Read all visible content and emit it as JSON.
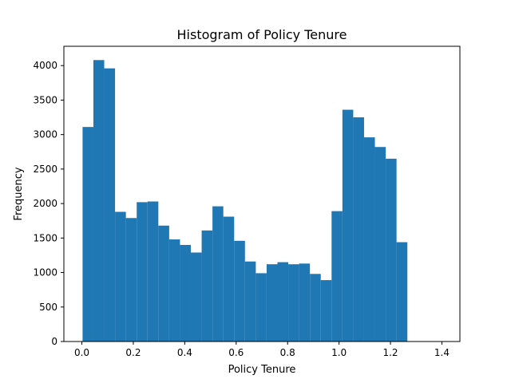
{
  "chart_data": {
    "type": "bar",
    "title": "Histogram of Policy Tenure",
    "xlabel": "Policy Tenure",
    "ylabel": "Frequency",
    "xlim": [
      -0.07,
      1.47
    ],
    "ylim": [
      0,
      4280
    ],
    "x_ticks": [
      0.0,
      0.2,
      0.4,
      0.6,
      0.8,
      1.0,
      1.2,
      1.4
    ],
    "x_tick_labels": [
      "0.0",
      "0.2",
      "0.4",
      "0.6",
      "0.8",
      "1.0",
      "1.2",
      "1.4"
    ],
    "y_ticks": [
      0,
      500,
      1000,
      1500,
      2000,
      2500,
      3000,
      3500,
      4000
    ],
    "y_tick_labels": [
      "0",
      "500",
      "1000",
      "1500",
      "2000",
      "2500",
      "3000",
      "3500",
      "4000"
    ],
    "bin_edges": [
      0.0027,
      0.0448,
      0.0869,
      0.129,
      0.1711,
      0.2132,
      0.2553,
      0.2974,
      0.3395,
      0.3816,
      0.4237,
      0.4658,
      0.5079,
      0.55,
      0.5921,
      0.6342,
      0.6763,
      0.7184,
      0.7605,
      0.8026,
      0.8447,
      0.8868,
      0.9289,
      0.971,
      1.0131,
      1.0552,
      1.0973,
      1.1394,
      1.1815,
      1.2236,
      1.2657
    ],
    "values": [
      3110,
      4080,
      3960,
      1880,
      1790,
      2020,
      2030,
      1680,
      1480,
      1400,
      1290,
      1610,
      1960,
      1810,
      1460,
      1160,
      990,
      1120,
      1150,
      1120,
      1130,
      980,
      890,
      1890,
      3360,
      3250,
      2960,
      2820,
      2650,
      1440
    ],
    "bar_color": "#1f77b4",
    "grid": false,
    "legend": "none"
  }
}
